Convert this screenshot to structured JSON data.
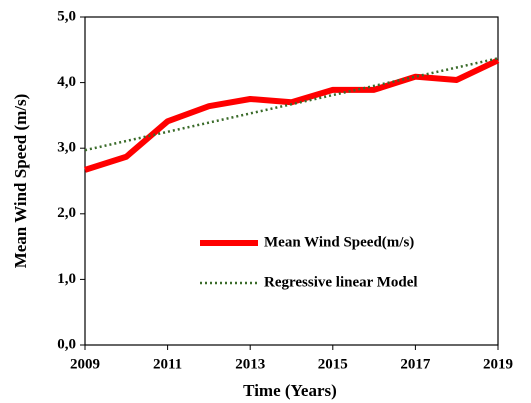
{
  "chart_data": {
    "type": "line",
    "x_label": "Time (Years)",
    "y_label": "Mean Wind Speed (m/s)",
    "x": [
      2009,
      2010,
      2011,
      2012,
      2013,
      2014,
      2015,
      2016,
      2017,
      2018,
      2019
    ],
    "series": [
      {
        "name": "Mean Wind Speed(m/s)",
        "color": "#ff0000",
        "style": "solid",
        "values": [
          2.67,
          2.87,
          3.41,
          3.64,
          3.75,
          3.7,
          3.89,
          3.89,
          4.09,
          4.04,
          4.34
        ]
      },
      {
        "name": "Regressive linear Model",
        "color": "#3a6b2a",
        "style": "dotted",
        "values": [
          2.97,
          3.11,
          3.25,
          3.39,
          3.53,
          3.67,
          3.81,
          3.95,
          4.09,
          4.23,
          4.37
        ]
      }
    ],
    "xlim": [
      2009,
      2019
    ],
    "xticks": [
      2009,
      2011,
      2013,
      2015,
      2017,
      2019
    ],
    "ylim": [
      0,
      5
    ],
    "yticks": [
      {
        "value": 0,
        "label": "0,0"
      },
      {
        "value": 1,
        "label": "1,0"
      },
      {
        "value": 2,
        "label": "2,0"
      },
      {
        "value": 3,
        "label": "3,0"
      },
      {
        "value": 4,
        "label": "4,0"
      },
      {
        "value": 5,
        "label": "5,0"
      }
    ],
    "legend": "lower right"
  }
}
